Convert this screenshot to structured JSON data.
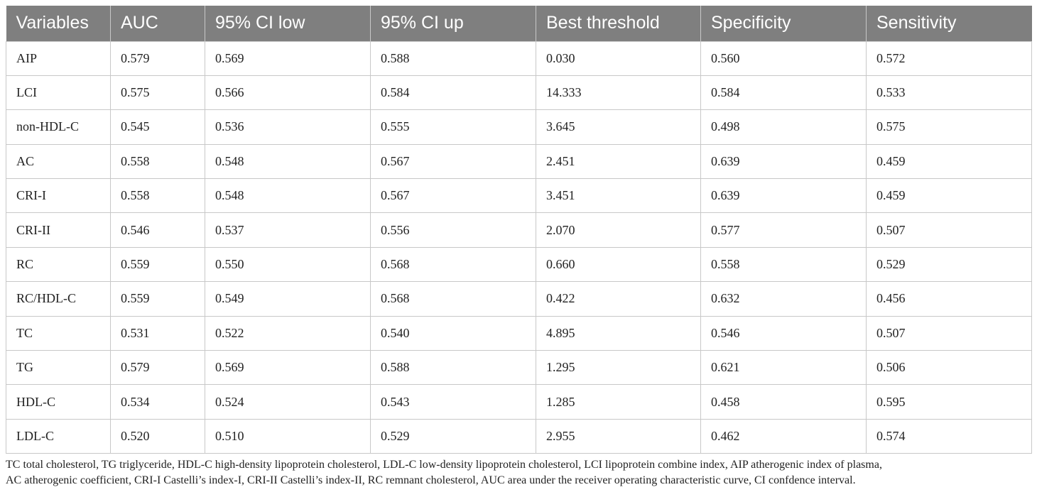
{
  "table": {
    "headers": [
      "Variables",
      "AUC",
      "95% CI low",
      "95% CI up",
      "Best threshold",
      "Specificity",
      "Sensitivity"
    ],
    "rows": [
      [
        "AIP",
        "0.579",
        "0.569",
        "0.588",
        "0.030",
        "0.560",
        "0.572"
      ],
      [
        "LCI",
        "0.575",
        "0.566",
        "0.584",
        "14.333",
        "0.584",
        "0.533"
      ],
      [
        "non-HDL-C",
        "0.545",
        "0.536",
        "0.555",
        "3.645",
        "0.498",
        "0.575"
      ],
      [
        "AC",
        "0.558",
        "0.548",
        "0.567",
        "2.451",
        "0.639",
        "0.459"
      ],
      [
        "CRI-I",
        "0.558",
        "0.548",
        "0.567",
        "3.451",
        "0.639",
        "0.459"
      ],
      [
        "CRI-II",
        "0.546",
        "0.537",
        "0.556",
        "2.070",
        "0.577",
        "0.507"
      ],
      [
        "RC",
        "0.559",
        "0.550",
        "0.568",
        "0.660",
        "0.558",
        "0.529"
      ],
      [
        "RC/HDL-C",
        "0.559",
        "0.549",
        "0.568",
        "0.422",
        "0.632",
        "0.456"
      ],
      [
        "TC",
        "0.531",
        "0.522",
        "0.540",
        "4.895",
        "0.546",
        "0.507"
      ],
      [
        "TG",
        "0.579",
        "0.569",
        "0.588",
        "1.295",
        "0.621",
        "0.506"
      ],
      [
        "HDL-C",
        "0.534",
        "0.524",
        "0.543",
        "1.285",
        "0.458",
        "0.595"
      ],
      [
        "LDL-C",
        "0.520",
        "0.510",
        "0.529",
        "2.955",
        "0.462",
        "0.574"
      ]
    ]
  },
  "footnote": {
    "line1": "TC total cholesterol, TG triglyceride, HDL-C high-density lipoprotein cholesterol, LDL-C low-density lipoprotein cholesterol, LCI lipoprotein combine index, AIP atherogenic index of plasma,",
    "line2": "AC atherogenic coefficient, CRI-I Castelli’s index-I, CRI-II Castelli’s index-II, RC remnant cholesterol, AUC area under the receiver operating characteristic curve, CI confdence interval."
  },
  "colors": {
    "header_bg": "#7f7f7f",
    "header_text": "#ffffff",
    "grid": "#c8c8c8"
  }
}
